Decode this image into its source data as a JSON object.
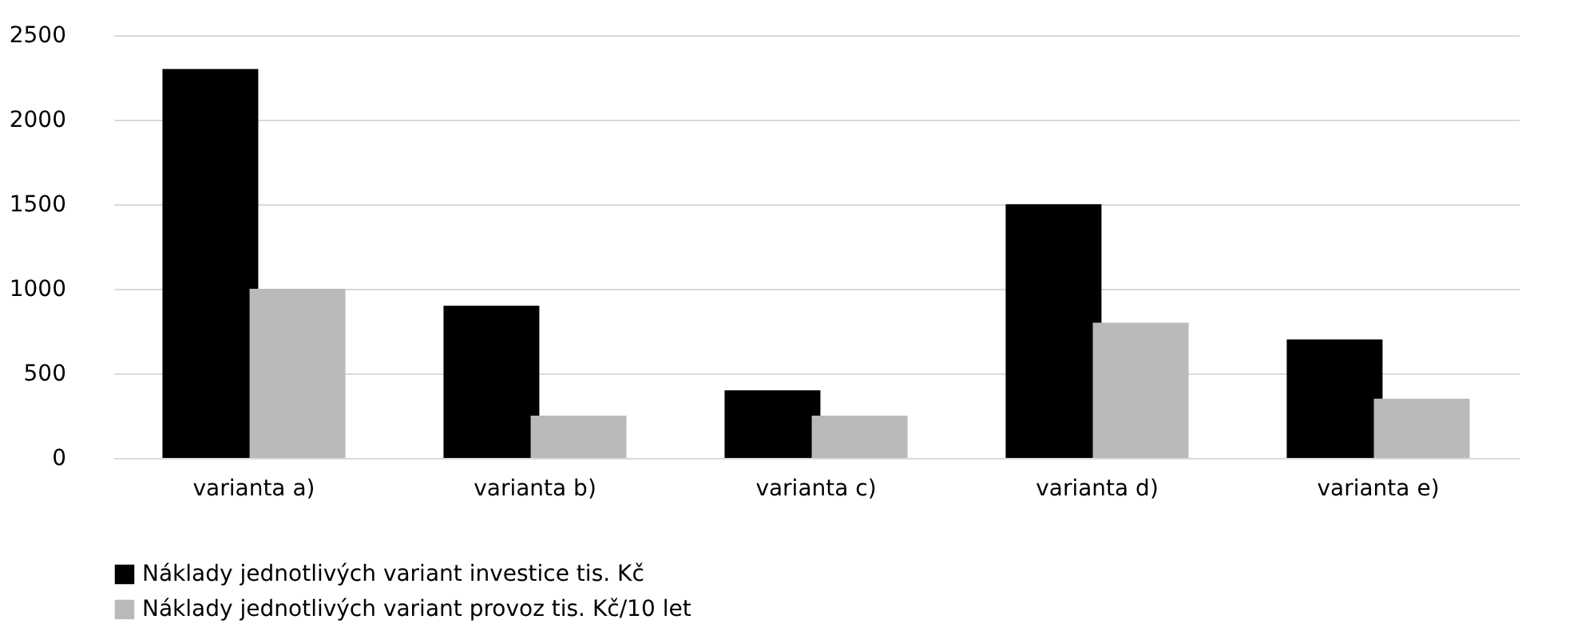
{
  "chart_data": {
    "type": "bar",
    "categories": [
      "varianta a)",
      "varianta b)",
      "varianta c)",
      "varianta d)",
      "varianta e)"
    ],
    "series": [
      {
        "name": "Náklady jednotlivých variant investice tis. Kč",
        "color": "#000000",
        "values": [
          2300,
          900,
          400,
          1500,
          700
        ]
      },
      {
        "name": "Náklady jednotlivých variant provoz tis. Kč/10 let",
        "color": "#bababa",
        "values": [
          1000,
          250,
          250,
          800,
          350
        ]
      }
    ],
    "ylim": [
      0,
      2500
    ],
    "yticks": [
      0,
      500,
      1000,
      1500,
      2000,
      2500
    ],
    "grid": "y",
    "legend": "bottom"
  }
}
